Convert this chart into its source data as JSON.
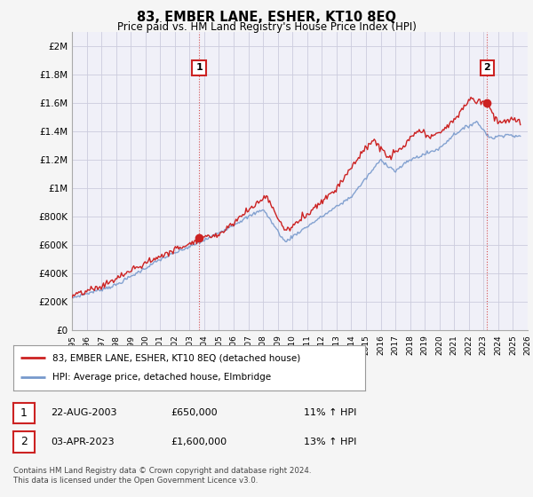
{
  "title": "83, EMBER LANE, ESHER, KT10 8EQ",
  "subtitle": "Price paid vs. HM Land Registry's House Price Index (HPI)",
  "ylim": [
    0,
    2100000
  ],
  "yticks": [
    0,
    200000,
    400000,
    600000,
    800000,
    1000000,
    1200000,
    1400000,
    1600000,
    1800000,
    2000000
  ],
  "ytick_labels": [
    "£0",
    "£200K",
    "£400K",
    "£600K",
    "£800K",
    "£1M",
    "£1.2M",
    "£1.4M",
    "£1.6M",
    "£1.8M",
    "£2M"
  ],
  "background_color": "#f5f5f5",
  "plot_background": "#f0f0f8",
  "grid_color": "#ccccdd",
  "line_color_red": "#cc2222",
  "line_color_blue": "#7799cc",
  "transaction1_x": 2003.65,
  "transaction1_y": 650000,
  "transaction2_x": 2023.25,
  "transaction2_y": 1600000,
  "legend_label_red": "83, EMBER LANE, ESHER, KT10 8EQ (detached house)",
  "legend_label_blue": "HPI: Average price, detached house, Elmbridge",
  "table_row1": [
    "1",
    "22-AUG-2003",
    "£650,000",
    "11% ↑ HPI"
  ],
  "table_row2": [
    "2",
    "03-APR-2023",
    "£1,600,000",
    "13% ↑ HPI"
  ],
  "footer": "Contains HM Land Registry data © Crown copyright and database right 2024.\nThis data is licensed under the Open Government Licence v3.0.",
  "xmin": 1995,
  "xmax": 2026
}
